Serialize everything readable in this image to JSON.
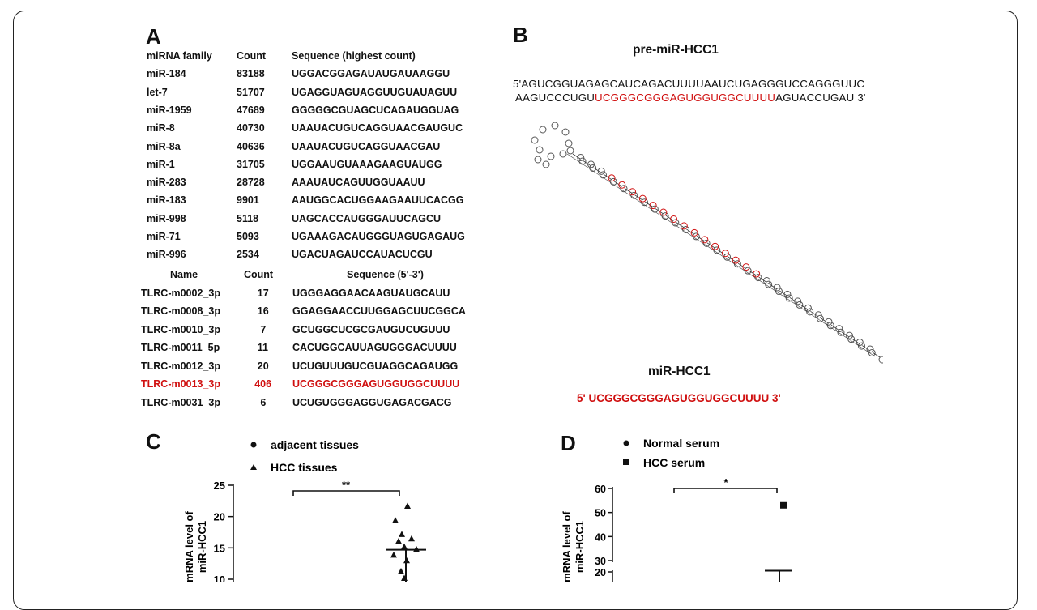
{
  "panels": {
    "a": "A",
    "b": "B",
    "c": "C",
    "d": "D"
  },
  "table1": {
    "headers": [
      "miRNA family",
      "Count",
      "Sequence (highest count)"
    ],
    "rows": [
      [
        "miR-184",
        "83188",
        "UGGACGGAGAUAUGAUAAGGU"
      ],
      [
        "let-7",
        "51707",
        "UGAGGUAGUAGGUUGUAUAGUU"
      ],
      [
        "miR-1959",
        "47689",
        "GGGGGCGUAGCUCAGAUGGUAG"
      ],
      [
        "miR-8",
        "40730",
        "UAAUACUGUCAGGUAACGAUGUC"
      ],
      [
        "miR-8a",
        "40636",
        "UAAUACUGUCAGGUAACGAU"
      ],
      [
        "miR-1",
        "31705",
        "UGGAAUGUAAAGAAGUAUGG"
      ],
      [
        "miR-283",
        "28728",
        "AAAUAUCAGUUGGUAAUU"
      ],
      [
        "miR-183",
        "9901",
        "AAUGGCACUGGAAGAAUUCACGG"
      ],
      [
        "miR-998",
        "5118",
        "UAGCACCAUGGGAUUCAGCU"
      ],
      [
        "miR-71",
        "5093",
        "UGAAAGACAUGGGUAGUGAGAUG"
      ],
      [
        "miR-996",
        "2534",
        "UGACUAGAUCCAUACUCGU"
      ]
    ]
  },
  "table2": {
    "headers": [
      "Name",
      "Count",
      "Sequence (5'-3')"
    ],
    "rows": [
      {
        "cells": [
          "TLRC-m0002_3p",
          "17",
          "UGGGAGGAACAAGUAUGCAUU"
        ],
        "highlight": false
      },
      {
        "cells": [
          "TLRC-m0008_3p",
          "16",
          "GGAGGAACCUUGGAGCUUCGGCA"
        ],
        "highlight": false
      },
      {
        "cells": [
          "TLRC-m0010_3p",
          "7",
          "GCUGGCUCGCGAUGUCUGUUU"
        ],
        "highlight": false
      },
      {
        "cells": [
          "TLRC-m0011_5p",
          "11",
          "CACUGGCAUUAGUGGGACUUUU"
        ],
        "highlight": false
      },
      {
        "cells": [
          "TLRC-m0012_3p",
          "20",
          "UCUGUUUGUCGUAGGCAGAUGG"
        ],
        "highlight": false
      },
      {
        "cells": [
          "TLRC-m0013_3p",
          "406",
          "UCGGGCGGGAGUGGUGGCUUUU"
        ],
        "highlight": true
      },
      {
        "cells": [
          "TLRC-m0031_3p",
          "6",
          "UCUGUGGGAGGUGAGACGACG"
        ],
        "highlight": false
      }
    ]
  },
  "panel_b": {
    "title": "pre-miR-HCC1",
    "line1": "5'AGUCGGUAGAGCAUCAGACUUUUAAUCUGAGGGUCCAGGGUUC",
    "line2_pre": "AAGUCCCUGU",
    "line2_red": "UCGGGCGGGAGUGGUGGCUUUU",
    "line2_post": "AGUACCUGAU 3'",
    "mature_title": "miR-HCC1",
    "mature_seq": "5' UCGGGCGGGAGUGGUGGCUUUU 3'",
    "colors": {
      "highlight": "#d01010",
      "structure": "#555555"
    }
  },
  "chart_data": [
    {
      "type": "scatter",
      "panel": "C",
      "ylabel": "mRNA  level of miR-HCC1",
      "ylim": [
        0,
        25
      ],
      "yticks": [
        "25",
        "20",
        "15",
        "10"
      ],
      "legend": [
        "adjacent tissues",
        "HCC tissues"
      ],
      "series": [
        {
          "name": "HCC tissues",
          "marker": "triangle",
          "x": 2,
          "values": [
            21.7,
            19.4,
            17.2,
            16.5,
            16.1,
            15.2,
            14.8,
            13.9,
            13.0,
            11.3,
            10.2
          ],
          "mean": 14.7
        },
        {
          "name": "adjacent tissues",
          "marker": "circle",
          "x": 1,
          "values": []
        }
      ],
      "significance": "**"
    },
    {
      "type": "scatter",
      "panel": "D",
      "ylabel": "mRNA  level of miR-HCC1",
      "ylim": [
        0,
        60
      ],
      "axis_break": [
        20,
        30
      ],
      "yticks": [
        "60",
        "50",
        "40",
        "30",
        "20"
      ],
      "legend": [
        "Normal serum",
        "HCC serum"
      ],
      "series": [
        {
          "name": "HCC serum",
          "marker": "square",
          "x": 2,
          "values": [
            53
          ],
          "mean": 20.5
        },
        {
          "name": "Normal serum",
          "marker": "circle",
          "x": 1,
          "values": []
        }
      ],
      "significance": "*"
    }
  ]
}
